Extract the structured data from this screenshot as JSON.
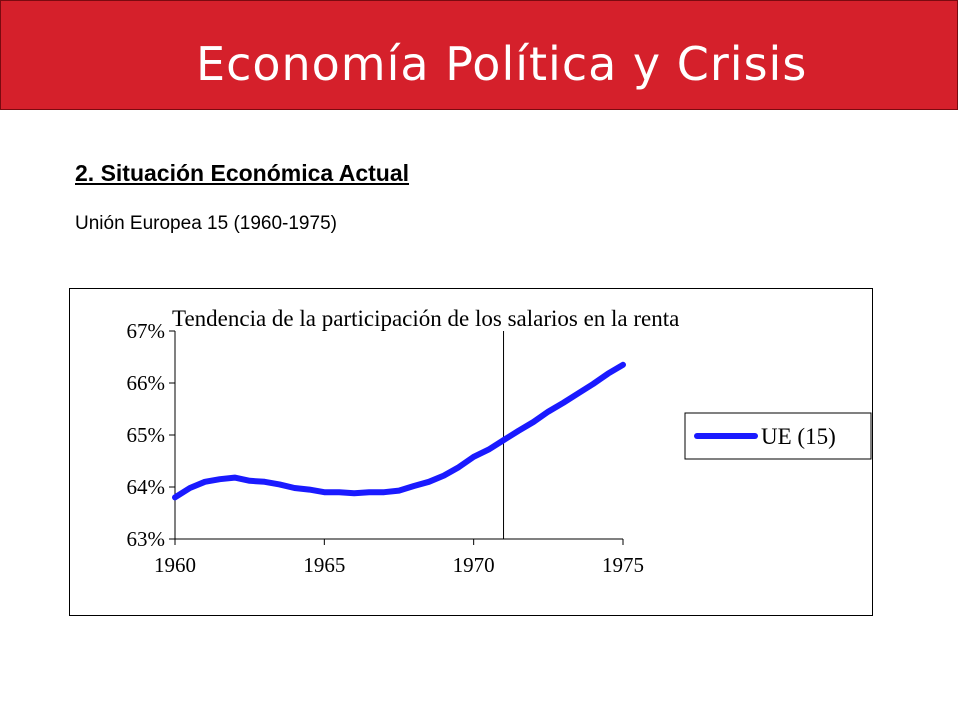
{
  "header": {
    "title": "Economía Política y Crisis",
    "color": "#d5202b"
  },
  "section": {
    "heading": "2. Situación Económica Actual",
    "subtitle": "Unión Europea 15 (1960-1975)"
  },
  "chart_data": {
    "type": "line",
    "title": "Tendencia de la participación de los salarios en la renta",
    "xlabel": "",
    "ylabel": "",
    "x_ticks": [
      "1960",
      "1965",
      "1970",
      "1975"
    ],
    "x_tick_values": [
      1960,
      1965,
      1970,
      1975
    ],
    "y_ticks": [
      "63%",
      "64%",
      "65%",
      "66%",
      "67%"
    ],
    "y_tick_values": [
      63,
      64,
      65,
      66,
      67
    ],
    "xlim": [
      1960,
      1975
    ],
    "ylim": [
      63,
      67
    ],
    "grid": false,
    "reference_line_x": 1971,
    "legend_position": "right",
    "series": [
      {
        "name": "UE (15)",
        "color": "#1a1aff",
        "x": [
          1960,
          1960.5,
          1961,
          1961.5,
          1962,
          1962.5,
          1963,
          1963.5,
          1964,
          1964.5,
          1965,
          1965.5,
          1966,
          1966.5,
          1967,
          1967.5,
          1968,
          1968.5,
          1969,
          1969.5,
          1970,
          1970.5,
          1971,
          1971.5,
          1972,
          1972.5,
          1973,
          1973.5,
          1974,
          1974.5,
          1975
        ],
        "values": [
          63.8,
          63.98,
          64.1,
          64.15,
          64.18,
          64.12,
          64.1,
          64.05,
          63.98,
          63.95,
          63.9,
          63.9,
          63.88,
          63.9,
          63.9,
          63.93,
          64.02,
          64.1,
          64.22,
          64.38,
          64.58,
          64.72,
          64.9,
          65.08,
          65.25,
          65.45,
          65.62,
          65.8,
          65.98,
          66.18,
          66.35
        ]
      }
    ]
  }
}
